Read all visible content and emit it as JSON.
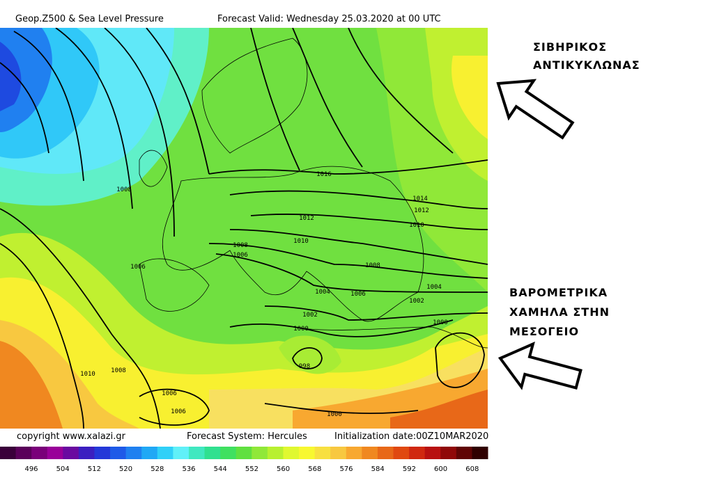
{
  "header": {
    "title": "Geop.Z500 & Sea Level Pressure",
    "valid": "Forecast Valid:  Wednesday 25.03.2020 at 00 UTC"
  },
  "footer": {
    "copyright": "copyright www.xalazi.gr",
    "system": "Forecast System: Hercules",
    "init": "Initialization date:00Z10MAR2020"
  },
  "colorbar": {
    "labels": [
      496,
      504,
      512,
      520,
      528,
      536,
      544,
      552,
      560,
      568,
      576,
      584,
      592,
      600,
      608
    ],
    "colors": [
      "#3a003a",
      "#5a005a",
      "#7a007a",
      "#990099",
      "#6a0aa0",
      "#3b1fc0",
      "#2438d8",
      "#1e5ae8",
      "#1f80f0",
      "#20a8f5",
      "#30d0f8",
      "#60f0f8",
      "#40e8c0",
      "#30e090",
      "#40e060",
      "#60e040",
      "#90e838",
      "#b8f030",
      "#e0f830",
      "#f8f830",
      "#f8e040",
      "#f8c840",
      "#f8a830",
      "#f08820",
      "#e86818",
      "#e04810",
      "#d02810",
      "#b81010",
      "#900808",
      "#600404",
      "#300000"
    ]
  },
  "isobars": [
    "1016",
    "1014",
    "1012",
    "1010",
    "1012",
    "1010",
    "1008",
    "1006",
    "1008",
    "1006",
    "1008",
    "1004",
    "1006",
    "1004",
    "1002",
    "1002",
    "1000",
    "1000",
    "998",
    "1010",
    "1008",
    "1006",
    "1006",
    "1000"
  ],
  "annotations": {
    "top": [
      "ΣΙΒΗΡΙΚΟΣ",
      "ΑΝΤΙΚΥΚΛΩΝΑΣ"
    ],
    "bottom": [
      "ΒΑΡΟΜΕΤΡΙΚΑ",
      "ΧΑΜΗΛΑ ΣΤΗΝ",
      "ΜΕΣΟΓΕΙΟ"
    ]
  }
}
